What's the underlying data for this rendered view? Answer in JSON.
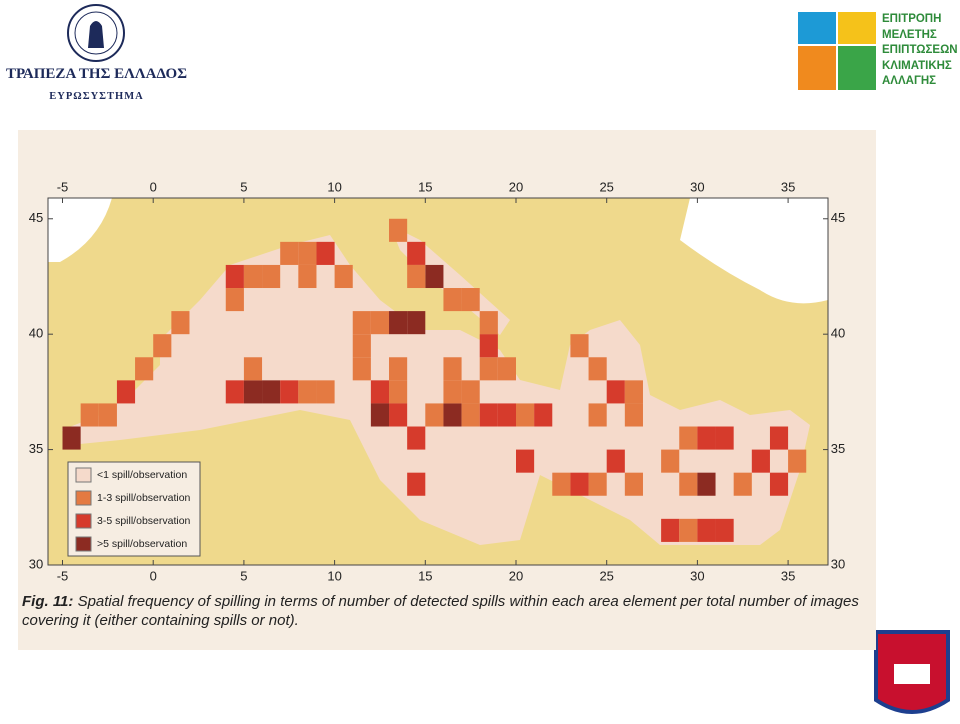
{
  "header": {
    "bank_name": "ΤΡΑΠΕΖΑ ΤΗΣ ΕΛΛΑΔΟΣ",
    "bank_subtitle": "ΕΥΡΩΣΥΣΤΗΜΑ",
    "committee_lines": [
      "ΕΠΙΤΡΟΠΗ",
      "ΜΕΛΕΤΗΣ",
      "ΕΠΙΠΤΩΣΕΩΝ",
      "ΚΛΙΜΑΤΙΚΗΣ",
      "ΑΛΛΑΓΗΣ"
    ]
  },
  "figure": {
    "xlim": [
      -5.8,
      37.2
    ],
    "ylim": [
      30,
      45.9
    ],
    "xticks": [
      -5,
      0,
      5,
      10,
      15,
      20,
      25,
      30,
      35
    ],
    "yticks": [
      30,
      35,
      40,
      45
    ],
    "legend": [
      {
        "label": "<1 spill/observation",
        "color": "#f5dacb"
      },
      {
        "label": "1-3 spill/observation",
        "color": "#e47a42"
      },
      {
        "label": "3-5 spill/observation",
        "color": "#d63b2c"
      },
      {
        "label": ">5 spill/observation",
        "color": "#8c2b22"
      }
    ],
    "cells": [
      [
        13,
        44,
        1
      ],
      [
        14,
        43,
        2
      ],
      [
        15,
        42,
        3
      ],
      [
        14,
        42,
        1
      ],
      [
        16,
        41,
        1
      ],
      [
        17,
        41,
        1
      ],
      [
        18,
        40,
        1
      ],
      [
        4,
        42,
        2
      ],
      [
        5,
        42,
        1
      ],
      [
        6,
        42,
        1
      ],
      [
        7,
        43,
        1
      ],
      [
        8,
        43,
        1
      ],
      [
        8,
        42,
        1
      ],
      [
        9,
        43,
        2
      ],
      [
        10,
        42,
        1
      ],
      [
        4,
        41,
        1
      ],
      [
        11,
        40,
        1
      ],
      [
        12,
        40,
        1
      ],
      [
        13,
        40,
        3
      ],
      [
        14,
        40,
        3
      ],
      [
        11,
        39,
        1
      ],
      [
        13,
        38,
        1
      ],
      [
        12,
        37,
        2
      ],
      [
        13,
        37,
        1
      ],
      [
        11,
        38,
        1
      ],
      [
        -5,
        35,
        3
      ],
      [
        -4,
        36,
        1
      ],
      [
        -3,
        36,
        1
      ],
      [
        -2,
        37,
        2
      ],
      [
        -1,
        38,
        1
      ],
      [
        0,
        39,
        1
      ],
      [
        1,
        40,
        1
      ],
      [
        4,
        37,
        2
      ],
      [
        5,
        37,
        3
      ],
      [
        6,
        37,
        3
      ],
      [
        7,
        37,
        2
      ],
      [
        8,
        37,
        1
      ],
      [
        9,
        37,
        1
      ],
      [
        5,
        38,
        1
      ],
      [
        12,
        36,
        3
      ],
      [
        13,
        36,
        2
      ],
      [
        14,
        35,
        2
      ],
      [
        15,
        36,
        1
      ],
      [
        16,
        36,
        3
      ],
      [
        17,
        36,
        1
      ],
      [
        18,
        36,
        2
      ],
      [
        19,
        36,
        2
      ],
      [
        16,
        37,
        1
      ],
      [
        17,
        37,
        1
      ],
      [
        18,
        38,
        1
      ],
      [
        18,
        39,
        2
      ],
      [
        19,
        38,
        1
      ],
      [
        16,
        38,
        1
      ],
      [
        20,
        36,
        1
      ],
      [
        21,
        36,
        2
      ],
      [
        23,
        39,
        1
      ],
      [
        24,
        38,
        1
      ],
      [
        25,
        37,
        2
      ],
      [
        24,
        36,
        1
      ],
      [
        26,
        36,
        1
      ],
      [
        26,
        37,
        1
      ],
      [
        25,
        34,
        2
      ],
      [
        24,
        33,
        1
      ],
      [
        26,
        33,
        1
      ],
      [
        28,
        34,
        1
      ],
      [
        29,
        35,
        1
      ],
      [
        30,
        35,
        2
      ],
      [
        31,
        35,
        2
      ],
      [
        29,
        33,
        1
      ],
      [
        30,
        33,
        3
      ],
      [
        32,
        33,
        1
      ],
      [
        33,
        34,
        2
      ],
      [
        34,
        35,
        2
      ],
      [
        34,
        33,
        2
      ],
      [
        28,
        31,
        2
      ],
      [
        29,
        31,
        1
      ],
      [
        30,
        31,
        2
      ],
      [
        31,
        31,
        2
      ],
      [
        20,
        34,
        2
      ],
      [
        14,
        33,
        2
      ],
      [
        22,
        33,
        1
      ],
      [
        23,
        33,
        2
      ],
      [
        35,
        34,
        1
      ]
    ],
    "caption": {
      "label": "Fig. 11:",
      "text": "Spatial frequency of spilling in terms of number of detected spills within each area element per total number of images covering it (either containing spills or not)."
    }
  }
}
